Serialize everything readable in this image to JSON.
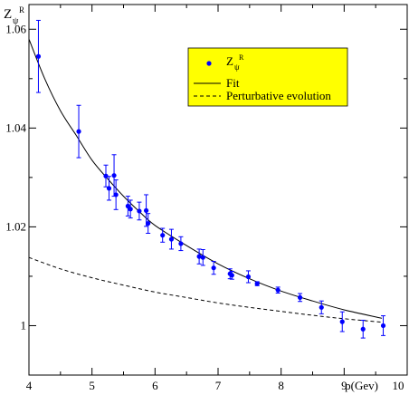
{
  "chart_data": {
    "type": "scatter",
    "title": "",
    "xlabel": "p(Gev)",
    "ylabel_main": "Z",
    "ylabel_sub": "ψ",
    "ylabel_sup": "R",
    "xlim": [
      4,
      10
    ],
    "ylim": [
      0.99,
      1.065
    ],
    "x_ticks": [
      4,
      5,
      6,
      7,
      8,
      9,
      10
    ],
    "x_tick_labels": [
      "4",
      "5",
      "6",
      "7",
      "8",
      "9",
      "10"
    ],
    "y_ticks": [
      1.0,
      1.02,
      1.04,
      1.06
    ],
    "y_tick_labels": [
      "1",
      "1.02",
      "1.04",
      "1.06"
    ],
    "grid": false,
    "legend": {
      "placement": "top-right",
      "background": "#ffff00",
      "entries": [
        {
          "label_main": "Z",
          "label_sub": "ψ",
          "label_sup": "R",
          "style": "marker"
        },
        {
          "label": "Fit",
          "style": "solid"
        },
        {
          "label": "Perturbative evolution",
          "style": "dashed"
        }
      ]
    },
    "series": [
      {
        "kind": "points",
        "color": "#0000ff",
        "x": [
          4.15,
          4.79,
          5.22,
          5.27,
          5.35,
          5.38,
          5.57,
          5.61,
          5.75,
          5.86,
          5.89,
          6.12,
          6.26,
          6.41,
          6.7,
          6.76,
          6.93,
          7.19,
          7.22,
          7.48,
          7.62,
          7.95,
          8.3,
          8.64,
          8.97,
          9.3,
          9.62
        ],
        "y": [
          1.0545,
          1.0393,
          1.0303,
          1.0278,
          1.0304,
          1.0265,
          1.0242,
          1.0236,
          1.0232,
          1.0233,
          1.0207,
          1.0183,
          1.0175,
          1.0166,
          1.014,
          1.0138,
          1.0117,
          1.0105,
          1.0102,
          1.0099,
          1.0085,
          1.0072,
          1.0057,
          1.0037,
          1.0008,
          0.9993,
          1.0
        ],
        "err": [
          0.0073,
          0.0053,
          0.0022,
          0.0024,
          0.0042,
          0.003,
          0.002,
          0.0018,
          0.0018,
          0.0032,
          0.002,
          0.0014,
          0.002,
          0.0014,
          0.0015,
          0.0016,
          0.0013,
          0.001,
          0.0008,
          0.0012,
          0.0004,
          0.0006,
          0.0008,
          0.0013,
          0.002,
          0.0018,
          0.002
        ]
      },
      {
        "kind": "curve",
        "style": "solid",
        "color": "#000000",
        "x": [
          4.0,
          4.25,
          4.5,
          4.75,
          5.0,
          5.25,
          5.5,
          5.75,
          6.0,
          6.5,
          7.0,
          7.5,
          8.0,
          8.5,
          9.0,
          9.6
        ],
        "y": [
          1.058,
          1.05,
          1.0435,
          1.0385,
          1.0335,
          1.0297,
          1.0262,
          1.0231,
          1.0203,
          1.0162,
          1.0125,
          1.0095,
          1.007,
          1.005,
          1.0032,
          1.0015
        ]
      },
      {
        "kind": "curve",
        "style": "dashed",
        "color": "#000000",
        "x": [
          4.0,
          4.5,
          5.0,
          5.5,
          6.0,
          6.5,
          7.0,
          7.5,
          8.0,
          8.5,
          9.0,
          9.6
        ],
        "y": [
          1.0138,
          1.0115,
          1.0097,
          1.0082,
          1.0068,
          1.0057,
          1.0046,
          1.0037,
          1.0029,
          1.0021,
          1.0014,
          1.0007
        ]
      }
    ]
  }
}
